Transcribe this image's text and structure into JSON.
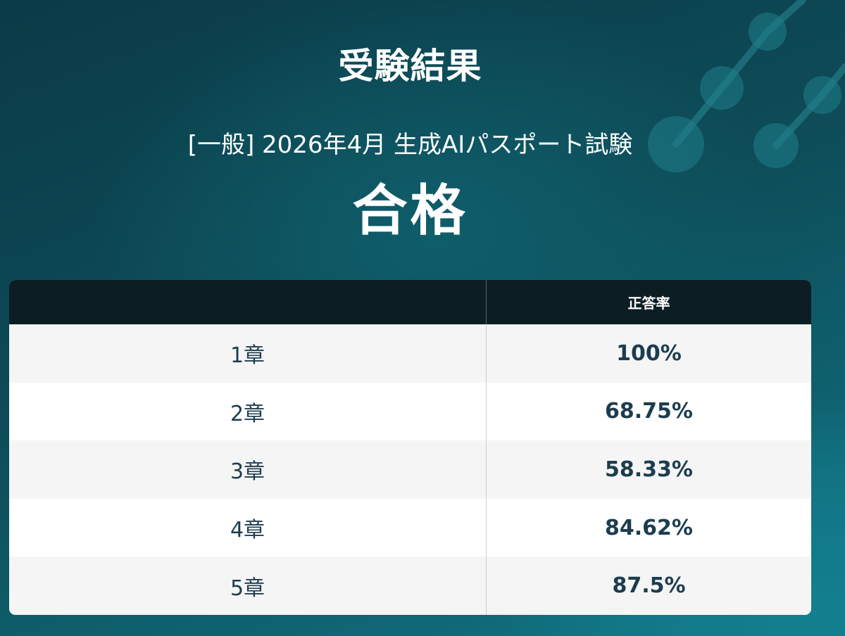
{
  "page": {
    "title": "受験結果",
    "exam_name": "[一般] 2026年4月 生成AIパスポート試験",
    "result": "合格"
  },
  "table": {
    "headers": [
      "",
      "正答率"
    ],
    "rows": [
      {
        "chapter": "1章",
        "rate": "100%"
      },
      {
        "chapter": "2章",
        "rate": "68.75%"
      },
      {
        "chapter": "3章",
        "rate": "58.33%"
      },
      {
        "chapter": "4章",
        "rate": "84.62%"
      },
      {
        "chapter": "5章",
        "rate": "87.5%"
      }
    ]
  },
  "colors": {
    "background": "#0d4c58",
    "header_row": "#0c1e24",
    "value_text": "#1c3d4f"
  }
}
